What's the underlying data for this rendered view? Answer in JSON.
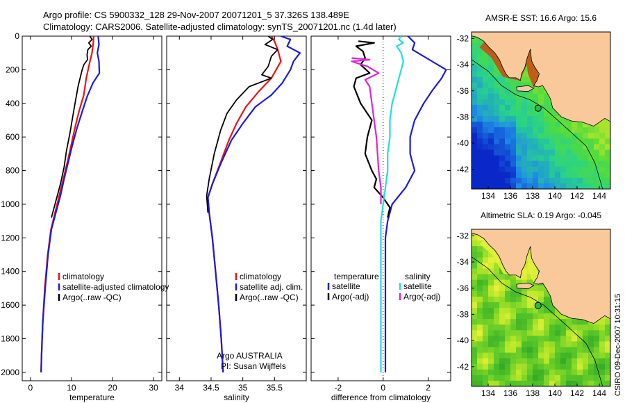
{
  "header": {
    "line1": "Argo profile: CS 5900332_128 29-Nov-2007 20071201_5 37.326S 138.489E",
    "line2": "Climatology: CARS2006. Satellite-adjusted climatology: synTS_20071201.nc (1.4d later)"
  },
  "side_stamp": "CSIRO 09-Dec-2007 10:31:15",
  "colors": {
    "climatology": "#ee1111",
    "satellite": "#1a1adf",
    "argo": "#000000",
    "salinity_diff": "#22dddd",
    "argo_salinity_diff": "#dd22dd",
    "land": "#f9c99c"
  },
  "chart_data": [
    {
      "type": "line",
      "id": "temperature",
      "xlabel": "temperature",
      "xlim": [
        -2,
        32
      ],
      "ylim": [
        0,
        2050
      ],
      "y_reversed": true,
      "xticks": [
        0,
        10,
        20,
        30
      ],
      "xtick_labels": [
        "0",
        "10",
        "20",
        "30"
      ],
      "yticks": [
        0,
        200,
        400,
        600,
        800,
        1000,
        1200,
        1400,
        1600,
        1800,
        2000
      ],
      "ytick_labels": [
        "0",
        "200",
        "400",
        "600",
        "800",
        "1000",
        "1200",
        "1400",
        "1600",
        "1800",
        "2000"
      ],
      "legend": [
        "climatology",
        "satellite-adjusted climatology",
        "Argo(..raw -QC)"
      ],
      "series": [
        {
          "name": "climatology",
          "color_key": "climatology",
          "points": [
            [
              15.4,
              0
            ],
            [
              15.3,
              40
            ],
            [
              15.0,
              100
            ],
            [
              14.5,
              150
            ],
            [
              13.6,
              250
            ],
            [
              13.0,
              350
            ],
            [
              11.8,
              450
            ],
            [
              10.8,
              550
            ],
            [
              9.9,
              650
            ],
            [
              9.0,
              750
            ],
            [
              8.0,
              850
            ],
            [
              7.0,
              950
            ],
            [
              6.0,
              1050
            ],
            [
              5.0,
              1150
            ],
            [
              4.2,
              1300
            ],
            [
              3.5,
              1500
            ],
            [
              3.0,
              1700
            ],
            [
              2.7,
              1900
            ],
            [
              2.6,
              2000
            ]
          ]
        },
        {
          "name": "satellite-adjusted climatology",
          "color_key": "satellite",
          "points": [
            [
              16.5,
              0
            ],
            [
              16.7,
              50
            ],
            [
              16.3,
              100
            ],
            [
              16.7,
              150
            ],
            [
              16.8,
              220
            ],
            [
              15.2,
              280
            ],
            [
              13.8,
              360
            ],
            [
              12.6,
              450
            ],
            [
              11.3,
              550
            ],
            [
              10.2,
              650
            ],
            [
              9.2,
              750
            ],
            [
              8.2,
              850
            ],
            [
              7.3,
              950
            ],
            [
              6.2,
              1050
            ],
            [
              5.1,
              1150
            ],
            [
              4.3,
              1300
            ],
            [
              3.6,
              1500
            ],
            [
              3.0,
              1700
            ],
            [
              2.7,
              1900
            ],
            [
              2.6,
              2000
            ]
          ]
        },
        {
          "name": "Argo(..raw -QC)",
          "color_key": "argo",
          "points": [
            [
              14.5,
              0
            ],
            [
              15.0,
              20
            ],
            [
              14.2,
              40
            ],
            [
              14.8,
              60
            ],
            [
              14.0,
              80
            ],
            [
              13.8,
              110
            ],
            [
              13.9,
              140
            ],
            [
              13.0,
              170
            ],
            [
              12.6,
              200
            ],
            [
              12.2,
              240
            ],
            [
              11.6,
              300
            ],
            [
              11.0,
              380
            ],
            [
              10.3,
              480
            ],
            [
              9.6,
              580
            ],
            [
              8.8,
              680
            ],
            [
              8.2,
              780
            ],
            [
              7.3,
              880
            ],
            [
              6.2,
              980
            ],
            [
              5.1,
              1080
            ]
          ]
        }
      ]
    },
    {
      "type": "line",
      "id": "salinity",
      "xlabel": "salinity",
      "xlim": [
        33.8,
        36.0
      ],
      "ylim": [
        0,
        2050
      ],
      "y_reversed": true,
      "xticks": [
        34,
        34.5,
        35,
        35.5
      ],
      "xtick_labels": [
        "34",
        "34.5",
        "35",
        "35.5"
      ],
      "legend": [
        "climatology",
        "satellite adj. clim.",
        "Argo(..raw -QC)"
      ],
      "annotation": [
        "Argo AUSTRALIA",
        "PI: Susan Wijffels"
      ],
      "series": [
        {
          "name": "climatology",
          "color_key": "climatology",
          "points": [
            [
              35.45,
              0
            ],
            [
              35.5,
              30
            ],
            [
              35.55,
              80
            ],
            [
              35.6,
              150
            ],
            [
              35.45,
              250
            ],
            [
              35.25,
              330
            ],
            [
              35.05,
              420
            ],
            [
              34.9,
              520
            ],
            [
              34.78,
              620
            ],
            [
              34.65,
              750
            ],
            [
              34.52,
              880
            ],
            [
              34.45,
              960
            ],
            [
              34.47,
              1050
            ],
            [
              34.52,
              1200
            ],
            [
              34.57,
              1400
            ],
            [
              34.62,
              1600
            ],
            [
              34.66,
              1800
            ],
            [
              34.69,
              2000
            ]
          ]
        },
        {
          "name": "satellite adj. clim.",
          "color_key": "satellite",
          "points": [
            [
              35.6,
              0
            ],
            [
              35.75,
              20
            ],
            [
              35.7,
              60
            ],
            [
              35.9,
              100
            ],
            [
              35.8,
              150
            ],
            [
              35.75,
              200
            ],
            [
              35.62,
              280
            ],
            [
              35.45,
              350
            ],
            [
              35.2,
              420
            ],
            [
              35.0,
              520
            ],
            [
              34.82,
              620
            ],
            [
              34.65,
              760
            ],
            [
              34.52,
              880
            ],
            [
              34.45,
              960
            ],
            [
              34.47,
              1050
            ],
            [
              34.52,
              1200
            ],
            [
              34.57,
              1400
            ],
            [
              34.62,
              1600
            ],
            [
              34.66,
              1800
            ],
            [
              34.69,
              2000
            ]
          ]
        },
        {
          "name": "Argo(..raw -QC)",
          "color_key": "argo",
          "points": [
            [
              35.4,
              0
            ],
            [
              35.47,
              20
            ],
            [
              35.35,
              50
            ],
            [
              35.55,
              80
            ],
            [
              35.45,
              120
            ],
            [
              35.4,
              180
            ],
            [
              35.3,
              230
            ],
            [
              35.45,
              250
            ],
            [
              35.1,
              300
            ],
            [
              34.9,
              380
            ],
            [
              34.75,
              460
            ],
            [
              34.65,
              560
            ],
            [
              34.55,
              700
            ],
            [
              34.47,
              850
            ],
            [
              34.43,
              950
            ],
            [
              34.45,
              1050
            ]
          ]
        }
      ]
    },
    {
      "type": "line",
      "id": "difference",
      "xlabel": "difference from climatology",
      "xlim": [
        -3.2,
        3.0
      ],
      "ylim": [
        0,
        2050
      ],
      "y_reversed": true,
      "xticks": [
        -2,
        0,
        2
      ],
      "xtick_labels": [
        "-2",
        "0",
        "2"
      ],
      "legend_temperature": [
        "temperature",
        "satellite",
        "Argo(-adj)"
      ],
      "legend_salinity": [
        "salinity",
        "satellite",
        "Argo(-adj)"
      ],
      "series": [
        {
          "name": "temperature satellite",
          "color_key": "satellite",
          "points": [
            [
              1.1,
              0
            ],
            [
              1.4,
              40
            ],
            [
              1.3,
              80
            ],
            [
              2.8,
              200
            ],
            [
              2.6,
              250
            ],
            [
              2.2,
              320
            ],
            [
              1.8,
              400
            ],
            [
              1.4,
              500
            ],
            [
              1.2,
              600
            ],
            [
              1.2,
              700
            ],
            [
              1.4,
              800
            ],
            [
              1.0,
              900
            ],
            [
              0.4,
              1000
            ],
            [
              0.2,
              1100
            ],
            [
              0.1,
              1200
            ],
            [
              0.1,
              1400
            ],
            [
              0.1,
              1600
            ],
            [
              0.1,
              1800
            ],
            [
              0.1,
              2000
            ]
          ]
        },
        {
          "name": "temperature Argo(-adj)",
          "color_key": "argo",
          "points": [
            [
              -1.1,
              30
            ],
            [
              -0.4,
              40
            ],
            [
              -1.2,
              60
            ],
            [
              -0.9,
              90
            ],
            [
              -0.8,
              130
            ],
            [
              -1.0,
              170
            ],
            [
              -0.6,
              220
            ],
            [
              -1.2,
              250
            ],
            [
              -1.3,
              300
            ],
            [
              -1.0,
              400
            ],
            [
              -0.5,
              500
            ],
            [
              -0.7,
              600
            ],
            [
              -0.8,
              700
            ],
            [
              -0.5,
              800
            ],
            [
              -0.3,
              850
            ],
            [
              -0.4,
              900
            ],
            [
              0.0,
              960
            ],
            [
              0.3,
              1020
            ],
            [
              0.2,
              1080
            ]
          ]
        },
        {
          "name": "salinity satellite",
          "color_key": "salinity_diff",
          "points": [
            [
              0.8,
              0
            ],
            [
              0.7,
              20
            ],
            [
              0.9,
              40
            ],
            [
              0.6,
              60
            ],
            [
              0.8,
              100
            ],
            [
              0.9,
              150
            ],
            [
              0.8,
              200
            ],
            [
              0.7,
              250
            ],
            [
              0.6,
              300
            ],
            [
              0.4,
              400
            ],
            [
              0.3,
              500
            ],
            [
              0.3,
              600
            ],
            [
              0.2,
              700
            ],
            [
              0.2,
              800
            ],
            [
              0.1,
              900
            ],
            [
              0.0,
              1000
            ],
            [
              -0.1,
              1100
            ],
            [
              -0.1,
              1300
            ],
            [
              -0.1,
              1500
            ],
            [
              -0.1,
              1700
            ],
            [
              -0.1,
              2000
            ]
          ]
        },
        {
          "name": "salinity Argo(-adj)",
          "color_key": "argo_salinity_diff",
          "points": [
            [
              -1.4,
              130
            ],
            [
              -0.6,
              140
            ],
            [
              -1.4,
              150
            ],
            [
              -0.7,
              180
            ],
            [
              -0.2,
              220
            ],
            [
              -0.8,
              260
            ],
            [
              -0.6,
              300
            ],
            [
              -0.5,
              400
            ],
            [
              -0.3,
              600
            ],
            [
              -0.2,
              800
            ],
            [
              -0.1,
              900
            ],
            [
              -0.1,
              1000
            ]
          ]
        }
      ]
    },
    {
      "type": "heatmap",
      "id": "sst_map",
      "title": "AMSR-E SST: 16.6  Argo: 15.6",
      "xticks": [
        134,
        136,
        138,
        140,
        142,
        144
      ],
      "xtick_labels": [
        "134",
        "136",
        "138",
        "140",
        "142",
        "144"
      ],
      "yticks": [
        -32,
        -34,
        -36,
        -38,
        -40,
        -42
      ],
      "ytick_labels": [
        "-32",
        "-34",
        "-36",
        "-38",
        "-40",
        "-42"
      ],
      "xlim": [
        132.5,
        145
      ],
      "ylim": [
        -43.5,
        -31.5
      ],
      "float_position": [
        138.489,
        -37.326
      ]
    },
    {
      "type": "heatmap",
      "id": "sla_map",
      "title": "Altimetric SLA: 0.19  Argo: -0.045",
      "xticks": [
        134,
        136,
        138,
        140,
        142,
        144
      ],
      "xtick_labels": [
        "134",
        "136",
        "138",
        "140",
        "142",
        "144"
      ],
      "yticks": [
        -32,
        -34,
        -36,
        -38,
        -40,
        -42
      ],
      "ytick_labels": [
        "-32",
        "-34",
        "-36",
        "-38",
        "-40",
        "-42"
      ],
      "xlim": [
        132.5,
        145
      ],
      "ylim": [
        -43.5,
        -31.5
      ],
      "float_position": [
        138.489,
        -37.326
      ]
    }
  ]
}
